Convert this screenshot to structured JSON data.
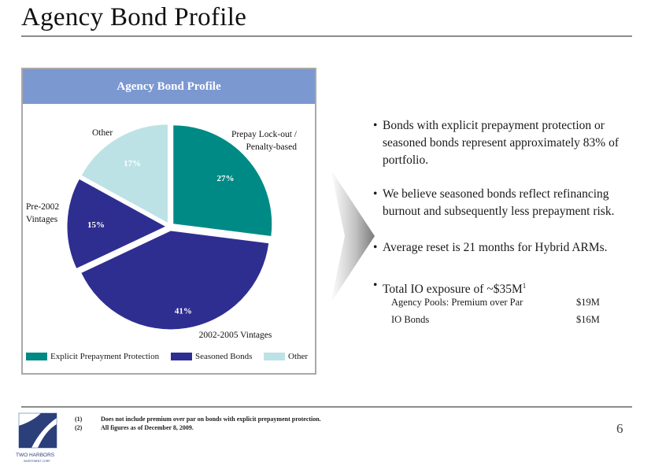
{
  "page": {
    "title": "Agency Bond Profile",
    "page_number": "6"
  },
  "colors": {
    "explicit": "#008a85",
    "seasoned": "#2e2e91",
    "other": "#bde2e6",
    "header": "#7b98d1",
    "label_on_light": "#ffffff"
  },
  "chart_data": {
    "type": "pie",
    "title": "Agency Bond Profile",
    "slices": [
      {
        "category": "Prepay Lock-out / Penalty-based",
        "value": 27,
        "label": "27%",
        "group": "explicit"
      },
      {
        "category": "2002-2005 Vintages",
        "value": 41,
        "label": "41%",
        "group": "seasoned"
      },
      {
        "category": "Pre-2002 Vintages",
        "value": 15,
        "label": "15%",
        "group": "seasoned"
      },
      {
        "category": "Other",
        "value": 17,
        "label": "17%",
        "group": "other"
      }
    ],
    "category_labels": {
      "prepay": [
        "Prepay Lock-out /",
        "Penalty-based"
      ],
      "vintage_2002_2005": [
        "2002-2005 Vintages"
      ],
      "pre_2002": [
        "Pre-2002",
        "Vintages"
      ],
      "other": [
        "Other"
      ]
    },
    "legend": [
      {
        "label": "Explicit Prepayment Protection",
        "color": "#008a85"
      },
      {
        "label": "Seasoned Bonds",
        "color": "#2e2e91"
      },
      {
        "label": "Other",
        "color": "#bde2e6"
      }
    ],
    "legend_position": "bottom"
  },
  "bullets": [
    {
      "text": "Bonds with explicit prepayment protection or seasoned bonds represent approximately 83% of portfolio."
    },
    {
      "text": "We believe seasoned bonds reflect refinancing burnout and subsequently less prepayment risk."
    },
    {
      "text": "Average reset is 21 months for Hybrid ARMs."
    },
    {
      "text": "Total IO exposure of ~$35M",
      "sup": "1"
    }
  ],
  "io_breakdown": [
    {
      "label": "Agency Pools: Premium over Par",
      "value": "$19M"
    },
    {
      "label": "IO Bonds",
      "value": "$16M"
    }
  ],
  "footnotes": [
    {
      "num": "(1)",
      "text": "Does not include premium over par on bonds with explicit prepayment protection."
    },
    {
      "num": "(2)",
      "text": "All figures as of December 8, 2009."
    }
  ],
  "logo": {
    "name": "TWO HARBORS",
    "tagline": "INVESTMENT CORP."
  }
}
